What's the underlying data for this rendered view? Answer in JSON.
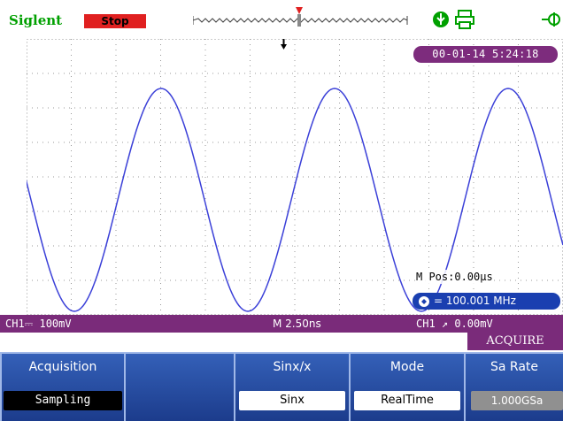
{
  "header": {
    "brand": "Siglent",
    "run_status": "Stop",
    "icons": [
      "usb-icon",
      "printer-icon",
      "trigger-slope-icon"
    ]
  },
  "screen": {
    "datetime": "00-01-14 5:24:18",
    "m_pos": "M Pos:0.00µs",
    "frequency": "= 100.001 MHz",
    "colors": {
      "waveform": "#3b40d8",
      "status_bar": "#7a2b7a",
      "softkey": "#2a4fa8"
    }
  },
  "status_bar": {
    "ch1_scale": "CH1⎓ 100mV",
    "timebase": "M 2.50ns",
    "trigger": "CH1 ↗ 0.00mV"
  },
  "menu": {
    "title": "ACQUIRE",
    "softkeys": [
      {
        "label": "Acquisition",
        "value": "Sampling"
      },
      {
        "label": "",
        "value": ""
      },
      {
        "label": "Sinx/x",
        "value": "Sinx"
      },
      {
        "label": "Mode",
        "value": "RealTime"
      },
      {
        "label": "Sa Rate",
        "value": "1.000GSa"
      }
    ]
  }
}
